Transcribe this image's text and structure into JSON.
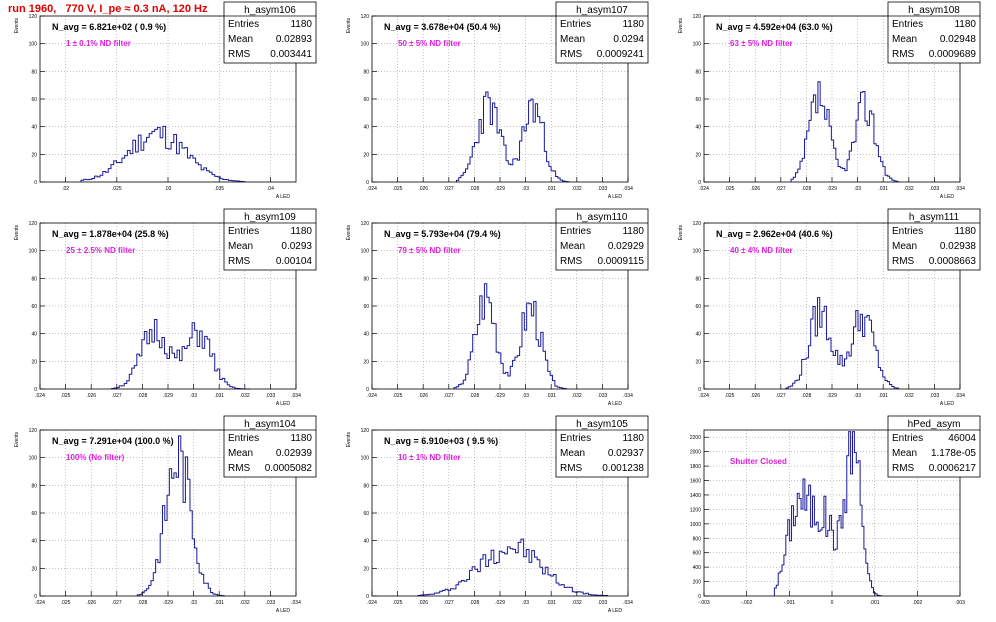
{
  "page_title": "run 1960,   770 V, I_pe ≈ 0.3 nA, 120 Hz",
  "chart_data": [
    {
      "type": "bar",
      "name": "h_asym106",
      "nlabel": "N_avg = 6.821e+02 ( 0.9 %)",
      "filter": "1 ± 0.1% ND filter",
      "stats": [
        [
          "Entries",
          "1180"
        ],
        [
          "Mean",
          "0.02893"
        ],
        [
          "RMS",
          "0.003441"
        ]
      ],
      "ylabel": "Events",
      "xlabel": "A_LED",
      "xlim": [
        0.0175,
        0.0425
      ],
      "ylim": [
        0,
        120
      ],
      "xticks": [
        0.02,
        0.025,
        0.03,
        0.035,
        0.04
      ],
      "yticks": [
        0,
        20,
        40,
        60,
        80,
        100,
        120
      ],
      "xdec": 3,
      "peaks": [
        [
          0.0289,
          35,
          0.0028,
          1
        ]
      ],
      "hist_range": [
        0.0215,
        0.0375
      ],
      "nbins": 60,
      "seed": 11
    },
    {
      "type": "bar",
      "name": "h_asym107",
      "nlabel": "N_avg = 3.678e+04 (50.4 %)",
      "filter": "50 ± 5% ND filter",
      "stats": [
        [
          "Entries",
          "1180"
        ],
        [
          "Mean",
          "0.0294"
        ],
        [
          "RMS",
          "0.0009241"
        ]
      ],
      "ylabel": "Events",
      "xlabel": "A_LED",
      "xlim": [
        0.024,
        0.034
      ],
      "ylim": [
        0,
        120
      ],
      "xticks": [
        0.024,
        0.025,
        0.026,
        0.027,
        0.028,
        0.029,
        0.03,
        0.031,
        0.032,
        0.033,
        0.034
      ],
      "yticks": [
        0,
        20,
        40,
        60,
        80,
        100,
        120
      ],
      "xdec": 3,
      "peaks": [
        [
          0.02855,
          55,
          0.00045,
          1
        ],
        [
          0.0303,
          55,
          0.0004,
          1
        ]
      ],
      "hist_range": [
        0.0273,
        0.0317
      ],
      "nbins": 50,
      "seed": 23
    },
    {
      "type": "bar",
      "name": "h_asym108",
      "nlabel": "N_avg = 4.592e+04 (63.0 %)",
      "filter": "63 ± 5% ND filter",
      "stats": [
        [
          "Entries",
          "1180"
        ],
        [
          "Mean",
          "0.02948"
        ],
        [
          "RMS",
          "0.0009689"
        ]
      ],
      "ylabel": "Events",
      "xlabel": "A_LED",
      "xlim": [
        0.024,
        0.034
      ],
      "ylim": [
        0,
        120
      ],
      "xticks": [
        0.024,
        0.025,
        0.026,
        0.027,
        0.028,
        0.029,
        0.03,
        0.031,
        0.032,
        0.033,
        0.034
      ],
      "yticks": [
        0,
        20,
        40,
        60,
        80,
        100,
        120
      ],
      "xdec": 3,
      "peaks": [
        [
          0.0285,
          60,
          0.0004,
          1
        ],
        [
          0.0303,
          55,
          0.0004,
          1
        ]
      ],
      "hist_range": [
        0.0274,
        0.0316
      ],
      "nbins": 48,
      "seed": 37
    },
    {
      "type": "bar",
      "name": "h_asym109",
      "nlabel": "N_avg = 1.878e+04 (25.8 %)",
      "filter": "25 ± 2.5% ND filter",
      "stats": [
        [
          "Entries",
          "1180"
        ],
        [
          "Mean",
          "0.0293"
        ],
        [
          "RMS",
          "0.00104"
        ]
      ],
      "ylabel": "Events",
      "xlabel": "A_LED",
      "xlim": [
        0.024,
        0.034
      ],
      "ylim": [
        0,
        120
      ],
      "xticks": [
        0.024,
        0.025,
        0.026,
        0.027,
        0.028,
        0.029,
        0.03,
        0.031,
        0.032,
        0.033,
        0.034
      ],
      "yticks": [
        0,
        20,
        40,
        60,
        80,
        100,
        120
      ],
      "xdec": 3,
      "peaks": [
        [
          0.0285,
          42,
          0.00055,
          1
        ],
        [
          0.0302,
          40,
          0.0005,
          1
        ]
      ],
      "hist_range": [
        0.0268,
        0.0322
      ],
      "nbins": 55,
      "seed": 51
    },
    {
      "type": "bar",
      "name": "h_asym110",
      "nlabel": "N_avg = 5.793e+04 (79.4 %)",
      "filter": "79 ± 5% ND filter",
      "stats": [
        [
          "Entries",
          "1180"
        ],
        [
          "Mean",
          "0.02929"
        ],
        [
          "RMS",
          "0.0009115"
        ]
      ],
      "ylabel": "Events",
      "xlabel": "A_LED",
      "xlim": [
        0.024,
        0.034
      ],
      "ylim": [
        0,
        120
      ],
      "xticks": [
        0.024,
        0.025,
        0.026,
        0.027,
        0.028,
        0.029,
        0.03,
        0.031,
        0.032,
        0.033,
        0.034
      ],
      "yticks": [
        0,
        20,
        40,
        60,
        80,
        100,
        120
      ],
      "xdec": 3,
      "peaks": [
        [
          0.02845,
          68,
          0.0004,
          1
        ],
        [
          0.0302,
          60,
          0.0004,
          1
        ]
      ],
      "hist_range": [
        0.0272,
        0.0316
      ],
      "nbins": 48,
      "seed": 67
    },
    {
      "type": "bar",
      "name": "h_asym111",
      "nlabel": "N_avg = 2.962e+04 (40.6 %)",
      "filter": "40 ± 4% ND filter",
      "stats": [
        [
          "Entries",
          "1180"
        ],
        [
          "Mean",
          "0.02938"
        ],
        [
          "RMS",
          "0.0008663"
        ]
      ],
      "ylabel": "Events",
      "xlabel": "A_LED",
      "xlim": [
        0.024,
        0.034
      ],
      "ylim": [
        0,
        120
      ],
      "xticks": [
        0.024,
        0.025,
        0.026,
        0.027,
        0.028,
        0.029,
        0.03,
        0.031,
        0.032,
        0.033,
        0.034
      ],
      "yticks": [
        0,
        20,
        40,
        60,
        80,
        100,
        120
      ],
      "xdec": 3,
      "peaks": [
        [
          0.02855,
          55,
          0.00045,
          1
        ],
        [
          0.0302,
          52,
          0.00045,
          1
        ]
      ],
      "hist_range": [
        0.0272,
        0.0316
      ],
      "nbins": 50,
      "seed": 79
    },
    {
      "type": "bar",
      "name": "h_asym104",
      "nlabel": "N_avg = 7.291e+04 (100.0 %)",
      "filter": "100% (No filter)",
      "stats": [
        [
          "Entries",
          "1180"
        ],
        [
          "Mean",
          "0.02939"
        ],
        [
          "RMS",
          "0.0005082"
        ]
      ],
      "ylabel": "Events",
      "xlabel": "A_LED",
      "xlim": [
        0.024,
        0.034
      ],
      "ylim": [
        0,
        120
      ],
      "xticks": [
        0.024,
        0.025,
        0.026,
        0.027,
        0.028,
        0.029,
        0.03,
        0.031,
        0.032,
        0.033,
        0.034
      ],
      "yticks": [
        0,
        20,
        40,
        60,
        80,
        100,
        120
      ],
      "xdec": 3,
      "peaks": [
        [
          0.0294,
          100,
          0.0005,
          1
        ]
      ],
      "hist_range": [
        0.0278,
        0.0312
      ],
      "nbins": 38,
      "seed": 83
    },
    {
      "type": "bar",
      "name": "h_asym105",
      "nlabel": "N_avg = 6.910e+03 ( 9.5 %)",
      "filter": "10 ± 1% ND filter",
      "stats": [
        [
          "Entries",
          "1180"
        ],
        [
          "Mean",
          "0.02937"
        ],
        [
          "RMS",
          "0.001238"
        ]
      ],
      "ylabel": "Events",
      "xlabel": "A_LED",
      "xlim": [
        0.024,
        0.034
      ],
      "ylim": [
        0,
        120
      ],
      "xticks": [
        0.024,
        0.025,
        0.026,
        0.027,
        0.028,
        0.029,
        0.03,
        0.031,
        0.032,
        0.033,
        0.034
      ],
      "yticks": [
        0,
        20,
        40,
        60,
        80,
        100,
        120
      ],
      "xdec": 3,
      "peaks": [
        [
          0.0294,
          36,
          0.0012,
          1
        ]
      ],
      "hist_range": [
        0.0258,
        0.0332
      ],
      "nbins": 70,
      "seed": 97
    },
    {
      "type": "bar",
      "name": "hPed_asym",
      "nlabel": "",
      "filter": "Shutter Closed",
      "stats": [
        [
          "Entries",
          "46004"
        ],
        [
          "Mean",
          "1.178e-05"
        ],
        [
          "RMS",
          "0.0006217"
        ]
      ],
      "ylabel": "",
      "xlabel": "",
      "xlim": [
        -0.003,
        0.003
      ],
      "ylim": [
        0,
        2300
      ],
      "xticks": [
        -0.003,
        -0.002,
        -0.001,
        0,
        0.001,
        0.002,
        0.003
      ],
      "yticks": [
        0,
        200,
        400,
        600,
        800,
        1000,
        1200,
        1400,
        1600,
        1800,
        2000,
        2200
      ],
      "xdec": 3,
      "peaks": [
        [
          -0.0008,
          1200,
          0.00025,
          1
        ],
        [
          -0.0002,
          1050,
          0.0003,
          1
        ],
        [
          0.0005,
          2150,
          0.00018,
          1
        ]
      ],
      "hist_range": [
        -0.00135,
        0.00115
      ],
      "nbins": 56,
      "seed": 101
    }
  ]
}
